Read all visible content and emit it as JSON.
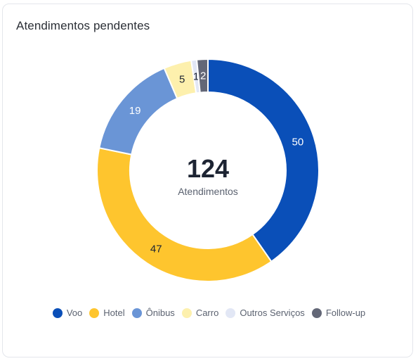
{
  "card": {
    "title": "Atendimentos pendentes"
  },
  "center": {
    "total": "124",
    "caption": "Atendimentos"
  },
  "chart_data": {
    "type": "pie",
    "variant": "donut",
    "categories": [
      "Voo",
      "Hotel",
      "Ônibus",
      "Carro",
      "Outros Serviços",
      "Follow-up"
    ],
    "values": [
      50,
      47,
      19,
      5,
      1,
      2
    ],
    "data_labels": [
      "50",
      "47",
      "19",
      "5",
      "1",
      "2"
    ],
    "colors": [
      "#0a4fb8",
      "#fec52e",
      "#6a95d6",
      "#fdf0ad",
      "#e2e7f5",
      "#636777"
    ],
    "label_colors": [
      "#ffffff",
      "#1d2433",
      "#ffffff",
      "#1d2433",
      "#1d2433",
      "#ffffff"
    ],
    "legend_position": "bottom",
    "start_angle": "top, clockwise"
  }
}
